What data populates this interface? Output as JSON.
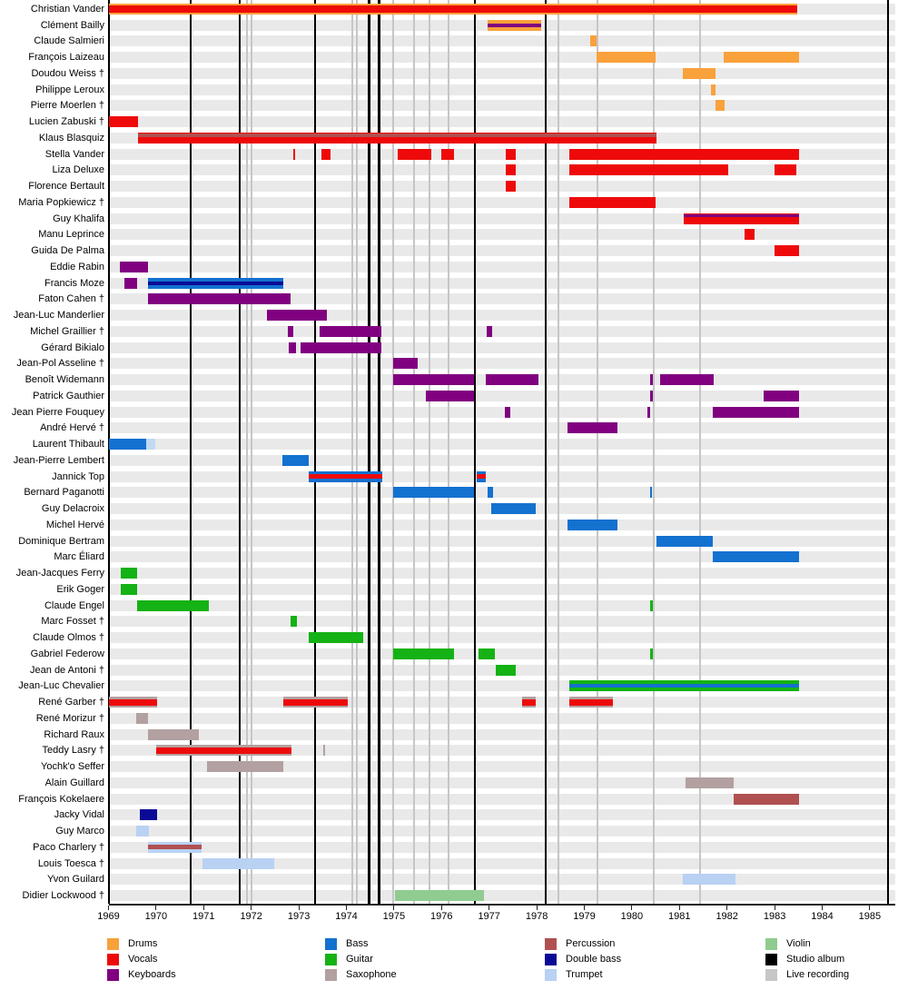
{
  "chart_data": {
    "type": "bar",
    "variant": "horizontal-gantt-timeline-of-band-members",
    "x_axis": {
      "start": 1969,
      "end": 1985,
      "ticks": [
        1969,
        1970,
        1971,
        1972,
        1973,
        1974,
        1975,
        1976,
        1977,
        1978,
        1979,
        1980,
        1981,
        1982,
        1983,
        1984,
        1985
      ]
    },
    "colors": {
      "drums": "#F9A13B",
      "vocals": "#EE0A0A",
      "keyboards": "#800080",
      "bass": "#1371CF",
      "bass_faded": "#BFD9F2",
      "guitar": "#14B214",
      "saxophone": "#B3A0A0",
      "percussion": "#B05050",
      "double_bass": "#0A0A96",
      "trumpet": "#B9D1F3",
      "violin": "#90CC90",
      "studio_album": "#000000",
      "live_recording": "#C6C6C6"
    },
    "legend_columns": [
      [
        {
          "key": "drums",
          "label": "Drums"
        },
        {
          "key": "vocals",
          "label": "Vocals"
        },
        {
          "key": "keyboards",
          "label": "Keyboards"
        }
      ],
      [
        {
          "key": "bass",
          "label": "Bass"
        },
        {
          "key": "guitar",
          "label": "Guitar"
        },
        {
          "key": "saxophone",
          "label": "Saxophone"
        }
      ],
      [
        {
          "key": "percussion",
          "label": "Percussion"
        },
        {
          "key": "double_bass",
          "label": "Double bass"
        },
        {
          "key": "trumpet",
          "label": "Trumpet"
        }
      ],
      [
        {
          "key": "violin",
          "label": "Violin"
        },
        {
          "key": "studio_album",
          "label": "Studio album"
        },
        {
          "key": "live_recording",
          "label": "Live recording"
        }
      ]
    ],
    "studio_album_years": [
      1970.73,
      1971.76,
      1973.34,
      1974.48,
      1974.69,
      1976.7,
      1978.19,
      1985.38
    ],
    "live_recording_years": [
      1971.91,
      1972.01,
      1974.12,
      1974.21,
      1974.98,
      1975.43,
      1975.74,
      1976.14,
      1978.46,
      1979.27,
      1980.46,
      1981.43
    ],
    "members": [
      {
        "name": "Christian Vander",
        "bars": [
          {
            "s": 1969.0,
            "e": 1983.47,
            "bg": "drums",
            "core": "vocals",
            "ch": 8
          }
        ]
      },
      {
        "name": "Clément Bailly",
        "bars": [
          {
            "s": 1976.97,
            "e": 1978.09,
            "bg": "drums",
            "core": "keyboards",
            "ch": 4
          }
        ]
      },
      {
        "name": "Claude Salmieri",
        "bars": [
          {
            "s": 1979.12,
            "e": 1979.26,
            "bg": "drums"
          }
        ]
      },
      {
        "name": "François Laizeau",
        "bars": [
          {
            "s": 1979.26,
            "e": 1980.5,
            "bg": "drums"
          },
          {
            "s": 1981.93,
            "e": 1983.51,
            "bg": "drums"
          }
        ]
      },
      {
        "name": "Doudou Weiss †",
        "bars": [
          {
            "s": 1981.07,
            "e": 1981.76,
            "bg": "drums"
          }
        ]
      },
      {
        "name": "Philippe Leroux",
        "bars": [
          {
            "s": 1981.66,
            "e": 1981.76,
            "bg": "drums"
          }
        ]
      },
      {
        "name": "Pierre Moerlen †",
        "bars": [
          {
            "s": 1981.76,
            "e": 1981.95,
            "bg": "drums"
          }
        ]
      },
      {
        "name": "Lucien Zabuski †",
        "bars": [
          {
            "s": 1969.0,
            "e": 1969.62,
            "bg": "vocals"
          }
        ]
      },
      {
        "name": "Klaus Blasquiz",
        "bars": [
          {
            "s": 1969.62,
            "e": 1980.52,
            "bg": "vocals",
            "core": "percussion",
            "ch": 4,
            "cp": "top"
          }
        ]
      },
      {
        "name": "Stella Vander",
        "bars": [
          {
            "s": 1972.88,
            "e": 1972.92,
            "bg": "vocals"
          },
          {
            "s": 1973.48,
            "e": 1973.67,
            "bg": "vocals"
          },
          {
            "s": 1975.08,
            "e": 1975.78,
            "bg": "vocals"
          },
          {
            "s": 1976.0,
            "e": 1976.26,
            "bg": "vocals"
          },
          {
            "s": 1977.35,
            "e": 1977.56,
            "bg": "vocals"
          },
          {
            "s": 1978.69,
            "e": 1983.51,
            "bg": "vocals"
          }
        ]
      },
      {
        "name": "Liza Deluxe",
        "bars": [
          {
            "s": 1977.35,
            "e": 1977.56,
            "bg": "vocals"
          },
          {
            "s": 1978.69,
            "e": 1982.03,
            "bg": "vocals"
          },
          {
            "s": 1982.99,
            "e": 1983.45,
            "bg": "vocals"
          }
        ]
      },
      {
        "name": "Florence Bertault",
        "bars": [
          {
            "s": 1977.35,
            "e": 1977.56,
            "bg": "vocals"
          }
        ]
      },
      {
        "name": "Maria Popkiewicz †",
        "bars": [
          {
            "s": 1978.69,
            "e": 1980.5,
            "bg": "vocals"
          }
        ]
      },
      {
        "name": "Guy Khalifa",
        "bars": [
          {
            "s": 1981.09,
            "e": 1983.51,
            "bg": "vocals",
            "core": "keyboards",
            "ch": 3,
            "cp": "top"
          }
        ]
      },
      {
        "name": "Manu Leprince",
        "bars": [
          {
            "s": 1982.37,
            "e": 1982.58,
            "bg": "vocals"
          }
        ]
      },
      {
        "name": "Guida De Palma",
        "bars": [
          {
            "s": 1982.99,
            "e": 1983.51,
            "bg": "vocals"
          }
        ]
      },
      {
        "name": "Eddie Rabin",
        "bars": [
          {
            "s": 1969.24,
            "e": 1969.83,
            "bg": "keyboards"
          }
        ]
      },
      {
        "name": "Francis Moze",
        "bars": [
          {
            "s": 1969.33,
            "e": 1969.6,
            "bg": "keyboards"
          },
          {
            "s": 1969.83,
            "e": 1972.67,
            "bg": "bass",
            "core": "double_bass",
            "ch": 4
          }
        ]
      },
      {
        "name": "Faton Cahen †",
        "bars": [
          {
            "s": 1969.83,
            "e": 1972.83,
            "bg": "keyboards"
          }
        ]
      },
      {
        "name": "Jean-Luc Manderlier",
        "bars": [
          {
            "s": 1972.33,
            "e": 1973.59,
            "bg": "keyboards"
          }
        ]
      },
      {
        "name": "Michel Graillier †",
        "bars": [
          {
            "s": 1972.77,
            "e": 1972.88,
            "bg": "keyboards"
          },
          {
            "s": 1973.44,
            "e": 1974.73,
            "bg": "keyboards"
          },
          {
            "s": 1976.95,
            "e": 1977.06,
            "bg": "keyboards"
          }
        ]
      },
      {
        "name": "Gérard Bikialo",
        "bars": [
          {
            "s": 1972.79,
            "e": 1972.94,
            "bg": "keyboards"
          },
          {
            "s": 1973.04,
            "e": 1974.73,
            "bg": "keyboards"
          }
        ]
      },
      {
        "name": "Jean-Pol Asseline †",
        "bars": [
          {
            "s": 1974.98,
            "e": 1975.5,
            "bg": "keyboards"
          }
        ]
      },
      {
        "name": "Benoît Widemann",
        "bars": [
          {
            "s": 1974.98,
            "e": 1976.68,
            "bg": "keyboards"
          },
          {
            "s": 1976.93,
            "e": 1978.04,
            "bg": "keyboards"
          },
          {
            "s": 1980.38,
            "e": 1980.44,
            "bg": "keyboards"
          },
          {
            "s": 1980.59,
            "e": 1981.72,
            "bg": "keyboards"
          }
        ]
      },
      {
        "name": "Patrick Gauthier",
        "bars": [
          {
            "s": 1975.67,
            "e": 1976.68,
            "bg": "keyboards"
          },
          {
            "s": 1980.38,
            "e": 1980.44,
            "bg": "keyboards"
          },
          {
            "s": 1982.77,
            "e": 1983.51,
            "bg": "keyboards"
          }
        ]
      },
      {
        "name": "Jean Pierre Fouquey",
        "bars": [
          {
            "s": 1977.33,
            "e": 1977.45,
            "bg": "keyboards"
          },
          {
            "s": 1980.33,
            "e": 1980.38,
            "bg": "keyboards"
          },
          {
            "s": 1981.7,
            "e": 1983.51,
            "bg": "keyboards"
          }
        ]
      },
      {
        "name": "André Hervé †",
        "bars": [
          {
            "s": 1978.65,
            "e": 1979.7,
            "bg": "keyboards"
          }
        ]
      },
      {
        "name": "Laurent Thibault",
        "bars": [
          {
            "s": 1969.0,
            "e": 1969.79,
            "bg": "bass"
          },
          {
            "s": 1969.79,
            "e": 1969.98,
            "bg": "bass",
            "faded": true
          }
        ]
      },
      {
        "name": "Jean-Pierre Lembert",
        "bars": [
          {
            "s": 1972.65,
            "e": 1973.21,
            "bg": "bass"
          }
        ]
      },
      {
        "name": "Jannick Top",
        "bars": [
          {
            "s": 1973.21,
            "e": 1974.75,
            "bg": "bass",
            "core": "vocals",
            "ch": 5
          },
          {
            "s": 1976.74,
            "e": 1976.93,
            "bg": "bass",
            "core": "vocals",
            "ch": 5
          }
        ]
      },
      {
        "name": "Bernard Paganotti",
        "bars": [
          {
            "s": 1974.98,
            "e": 1976.68,
            "bg": "bass"
          },
          {
            "s": 1976.97,
            "e": 1977.08,
            "bg": "bass"
          },
          {
            "s": 1980.38,
            "e": 1980.42,
            "bg": "bass"
          }
        ]
      },
      {
        "name": "Guy Delacroix",
        "bars": [
          {
            "s": 1977.04,
            "e": 1977.98,
            "bg": "bass"
          }
        ]
      },
      {
        "name": "Michel Hervé",
        "bars": [
          {
            "s": 1978.65,
            "e": 1979.7,
            "bg": "bass"
          }
        ]
      },
      {
        "name": "Dominique Bertram",
        "bars": [
          {
            "s": 1980.52,
            "e": 1981.7,
            "bg": "bass"
          }
        ]
      },
      {
        "name": "Marc Éliard",
        "bars": [
          {
            "s": 1981.7,
            "e": 1983.51,
            "bg": "bass"
          }
        ]
      },
      {
        "name": "Jean-Jacques Ferry",
        "bars": [
          {
            "s": 1969.26,
            "e": 1969.6,
            "bg": "guitar"
          }
        ]
      },
      {
        "name": "Erik Goger",
        "bars": [
          {
            "s": 1969.26,
            "e": 1969.6,
            "bg": "guitar"
          }
        ]
      },
      {
        "name": "Claude Engel",
        "bars": [
          {
            "s": 1969.6,
            "e": 1971.11,
            "bg": "guitar"
          },
          {
            "s": 1980.38,
            "e": 1980.44,
            "bg": "guitar"
          }
        ]
      },
      {
        "name": "Marc Fosset †",
        "bars": [
          {
            "s": 1972.83,
            "e": 1972.96,
            "bg": "guitar"
          }
        ]
      },
      {
        "name": "Claude Olmos †",
        "bars": [
          {
            "s": 1973.21,
            "e": 1974.35,
            "bg": "guitar"
          }
        ]
      },
      {
        "name": "Gabriel Federow",
        "bars": [
          {
            "s": 1974.98,
            "e": 1976.26,
            "bg": "guitar"
          },
          {
            "s": 1976.78,
            "e": 1977.12,
            "bg": "guitar"
          },
          {
            "s": 1980.38,
            "e": 1980.44,
            "bg": "guitar"
          }
        ]
      },
      {
        "name": "Jean de Antoni †",
        "bars": [
          {
            "s": 1977.14,
            "e": 1977.56,
            "bg": "guitar"
          }
        ]
      },
      {
        "name": "Jean-Luc Chevalier",
        "bars": [
          {
            "s": 1978.69,
            "e": 1983.51,
            "bg": "guitar",
            "core": "bass",
            "ch": 4
          }
        ]
      },
      {
        "name": "René Garber †",
        "bars": [
          {
            "s": 1969.0,
            "e": 1970.02,
            "bg": "saxophone",
            "core": "vocals",
            "ch": 7
          },
          {
            "s": 1972.67,
            "e": 1974.03,
            "bg": "saxophone",
            "core": "vocals",
            "ch": 7
          },
          {
            "s": 1977.69,
            "e": 1977.98,
            "bg": "saxophone",
            "core": "vocals",
            "ch": 7
          },
          {
            "s": 1978.69,
            "e": 1979.6,
            "bg": "saxophone",
            "core": "vocals",
            "ch": 7
          }
        ]
      },
      {
        "name": "René Morizur †",
        "bars": [
          {
            "s": 1969.58,
            "e": 1969.83,
            "bg": "saxophone"
          }
        ]
      },
      {
        "name": "Richard Raux",
        "bars": [
          {
            "s": 1969.83,
            "e": 1970.9,
            "bg": "saxophone"
          }
        ]
      },
      {
        "name": "Teddy Lasry †",
        "bars": [
          {
            "s": 1970.0,
            "e": 1972.85,
            "bg": "saxophone",
            "core": "vocals",
            "ch": 7
          },
          {
            "s": 1973.51,
            "e": 1973.55,
            "bg": "saxophone"
          }
        ]
      },
      {
        "name": "Yochk'o Seffer",
        "bars": [
          {
            "s": 1971.07,
            "e": 1972.67,
            "bg": "saxophone"
          }
        ]
      },
      {
        "name": "Alain Guillard",
        "bars": [
          {
            "s": 1981.13,
            "e": 1982.14,
            "bg": "saxophone"
          }
        ]
      },
      {
        "name": "François Kokelaere",
        "bars": [
          {
            "s": 1982.14,
            "e": 1983.51,
            "bg": "percussion"
          }
        ]
      },
      {
        "name": "Jacky Vidal",
        "bars": [
          {
            "s": 1969.66,
            "e": 1970.02,
            "bg": "double_bass"
          }
        ]
      },
      {
        "name": "Guy Marco",
        "bars": [
          {
            "s": 1969.58,
            "e": 1969.85,
            "bg": "trumpet"
          }
        ]
      },
      {
        "name": "Paco Charlery †",
        "bars": [
          {
            "s": 1969.83,
            "e": 1970.96,
            "bg": "trumpet",
            "core": "percussion",
            "ch": 5
          }
        ]
      },
      {
        "name": "Louis Toesca †",
        "bars": [
          {
            "s": 1970.97,
            "e": 1972.48,
            "bg": "trumpet"
          }
        ]
      },
      {
        "name": "Yvon Guilard",
        "bars": [
          {
            "s": 1981.07,
            "e": 1982.18,
            "bg": "trumpet"
          }
        ]
      },
      {
        "name": "Didier Lockwood †",
        "bars": [
          {
            "s": 1975.02,
            "e": 1976.89,
            "bg": "violin"
          }
        ]
      }
    ]
  }
}
